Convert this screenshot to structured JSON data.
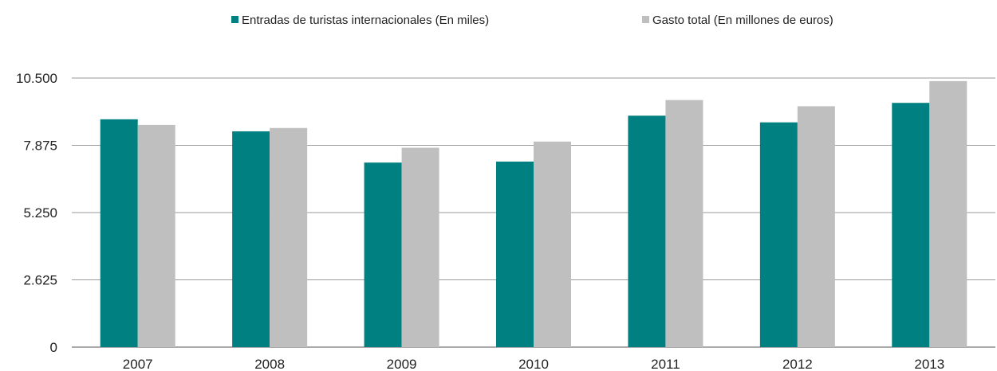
{
  "chart_data": {
    "type": "bar",
    "categories": [
      "2007",
      "2008",
      "2009",
      "2010",
      "2011",
      "2012",
      "2013"
    ],
    "series": [
      {
        "name": "Entradas de turistas internacionales (En miles)",
        "color": "#008080",
        "values": [
          8890,
          8420,
          7200,
          7240,
          9030,
          8770,
          9530
        ]
      },
      {
        "name": "Gasto total (En millones de euros)",
        "color": "#bfbfbf",
        "values": [
          8670,
          8550,
          7780,
          8020,
          9640,
          9400,
          10380
        ]
      }
    ],
    "yticks": [
      {
        "value": 0,
        "label": "0"
      },
      {
        "value": 2625,
        "label": "2.625"
      },
      {
        "value": 5250,
        "label": "5.250"
      },
      {
        "value": 7875,
        "label": "7.875"
      },
      {
        "value": 10500,
        "label": "10.500"
      }
    ],
    "ylim": [
      0,
      10500
    ],
    "grid": true,
    "legend_position": "top-center",
    "title": "",
    "xlabel": "",
    "ylabel": ""
  }
}
